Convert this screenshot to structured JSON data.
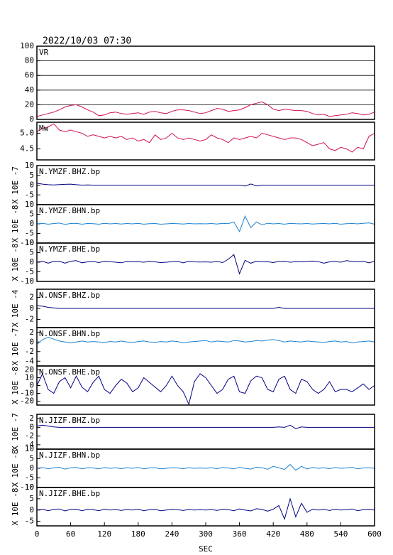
{
  "chart_data": {
    "type": "line",
    "title": "2022/10/03 07:30",
    "xlabel": "SEC",
    "xlim": [
      0,
      600
    ],
    "xticks": [
      0,
      60,
      120,
      180,
      240,
      300,
      360,
      420,
      480,
      540,
      600
    ],
    "x": [
      0,
      10,
      20,
      30,
      40,
      50,
      60,
      70,
      80,
      90,
      100,
      110,
      120,
      130,
      140,
      150,
      160,
      170,
      180,
      190,
      200,
      210,
      220,
      230,
      240,
      250,
      260,
      270,
      280,
      290,
      300,
      310,
      320,
      330,
      340,
      350,
      360,
      370,
      380,
      390,
      400,
      410,
      420,
      430,
      440,
      450,
      460,
      470,
      480,
      490,
      500,
      510,
      520,
      530,
      540,
      550,
      560,
      570,
      580,
      590,
      600
    ],
    "series": [
      {
        "name": "VR",
        "color": "#d0104c",
        "ylim": [
          0,
          100
        ],
        "yticks": [
          0,
          20,
          40,
          60,
          80,
          100
        ],
        "grid": true,
        "values": [
          4,
          6,
          8,
          10,
          13,
          17,
          19,
          20,
          17,
          13,
          10,
          5,
          6,
          9,
          10,
          8,
          7,
          8,
          9,
          7,
          10,
          11,
          9,
          8,
          11,
          13,
          13,
          12,
          10,
          8,
          9,
          12,
          15,
          14,
          11,
          12,
          13,
          16,
          20,
          22,
          24,
          20,
          14,
          12,
          14,
          13,
          12,
          12,
          11,
          8,
          6,
          7,
          4,
          5,
          6,
          7,
          9,
          8,
          6,
          7,
          10
        ]
      },
      {
        "name": "Mw",
        "color": "#d0104c",
        "ylim": [
          4.15,
          5.35
        ],
        "yticks": [
          4.5,
          {
            "value": 5,
            "label": "5.0"
          }
        ],
        "values": [
          5.05,
          5.15,
          5.2,
          5.3,
          5.1,
          5.05,
          5.1,
          5.05,
          5.0,
          4.9,
          4.95,
          4.9,
          4.85,
          4.9,
          4.85,
          4.9,
          4.8,
          4.85,
          4.75,
          4.8,
          4.7,
          4.95,
          4.8,
          4.85,
          5.0,
          4.85,
          4.8,
          4.85,
          4.8,
          4.75,
          4.8,
          4.95,
          4.85,
          4.8,
          4.7,
          4.85,
          4.8,
          4.85,
          4.9,
          4.85,
          5.0,
          4.95,
          4.9,
          4.85,
          4.8,
          4.85,
          4.85,
          4.8,
          4.7,
          4.6,
          4.65,
          4.7,
          4.5,
          4.45,
          4.55,
          4.5,
          4.4,
          4.55,
          4.5,
          4.9,
          5.0
        ]
      },
      {
        "name": "N.YMZF.BHZ.bp",
        "color": "#000080",
        "ylabel": "X 10E -7",
        "ylim": [
          -10,
          10
        ],
        "yticks": [
          -5,
          0,
          5,
          10
        ],
        "values": [
          1,
          0.5,
          0.2,
          0.1,
          0.3,
          0.4,
          0.5,
          0.2,
          0,
          0.1,
          0,
          0,
          0,
          0,
          0,
          0,
          0,
          0,
          0,
          0,
          0,
          0,
          0,
          0,
          0,
          0,
          0,
          0,
          0,
          0,
          0,
          0,
          0,
          0,
          0,
          0,
          0,
          -0.5,
          0.6,
          -0.4,
          0,
          0,
          0,
          0,
          0,
          0,
          0,
          0,
          0,
          0,
          0,
          0,
          0,
          0,
          0,
          0,
          0,
          0,
          0,
          0,
          0
        ]
      },
      {
        "name": "N.YMZF.BHN.bp",
        "color": "#1a80d0",
        "ylabel": "X 10E -8",
        "ylim": [
          -10,
          10
        ],
        "yticks": [
          -10,
          -5,
          0,
          5,
          10
        ],
        "values": [
          0,
          0.3,
          -0.2,
          0.2,
          0.4,
          -0.3,
          0.2,
          0.3,
          -0.2,
          0.2,
          0.1,
          -0.2,
          0.3,
          0,
          0.2,
          -0.1,
          0.2,
          0,
          0.3,
          -0.2,
          0.1,
          0.2,
          -0.2,
          0,
          0.2,
          0.1,
          -0.1,
          0.2,
          0,
          0.1,
          0,
          0.2,
          -0.1,
          0.3,
          0.1,
          1,
          -4,
          4,
          -2,
          1,
          -0.5,
          0.3,
          0,
          0.2,
          -0.2,
          0.3,
          0.1,
          0,
          0.2,
          -0.1,
          0.1,
          0.2,
          0,
          0.3,
          -0.2,
          0.1,
          0.2,
          0,
          0.3,
          0.5,
          -0.2
        ]
      },
      {
        "name": "N.YMZF.BHE.bp",
        "color": "#000080",
        "ylabel": "X 10E -8",
        "ylim": [
          -10,
          10
        ],
        "yticks": [
          -10,
          -5,
          0,
          5,
          10
        ],
        "values": [
          0,
          0.5,
          -0.5,
          0.5,
          0.5,
          -0.5,
          0.5,
          0.8,
          -0.3,
          0.2,
          0.4,
          -0.2,
          0.5,
          0.3,
          0,
          -0.3,
          0.4,
          0.2,
          0.3,
          0,
          0.5,
          0.2,
          -0.2,
          0,
          0.3,
          0.4,
          -0.3,
          0.5,
          0.2,
          0.1,
          0.2,
          0,
          0.4,
          -0.2,
          1.5,
          4,
          -6,
          1,
          -0.5,
          0.5,
          0.2,
          0.3,
          -0.2,
          0.4,
          0.5,
          0,
          0.3,
          0.2,
          0.5,
          0.6,
          0.3,
          -0.5,
          0.2,
          0.4,
          0,
          0.8,
          0.4,
          0.2,
          0.5,
          -0.3,
          0.5
        ]
      },
      {
        "name": "N.ONSF.BHZ.bp",
        "color": "#000080",
        "ylabel": "X 10E -4",
        "ylim": [
          -3.5,
          3.5
        ],
        "yticks": [
          -2,
          0,
          2
        ],
        "values": [
          0.5,
          0.4,
          0.2,
          0.1,
          0,
          0,
          0,
          0,
          0,
          0,
          0,
          0,
          0,
          0,
          0,
          0,
          0,
          0,
          0,
          0,
          0,
          0,
          0,
          0,
          0,
          0,
          0,
          0,
          0,
          0,
          0,
          0,
          0,
          0,
          0,
          0,
          0,
          0,
          0,
          0,
          0,
          0,
          0,
          0.2,
          0,
          0,
          0,
          0,
          0,
          0,
          0,
          0,
          0,
          0,
          0,
          0,
          0,
          0,
          0,
          0,
          0
        ]
      },
      {
        "name": "N.ONSF.BHN.bp",
        "color": "#1a80d0",
        "ylabel": "X 10E -7",
        "ylim": [
          -5,
          3
        ],
        "yticks": [
          -4,
          -2,
          0,
          2
        ],
        "values": [
          -0.5,
          0.5,
          1,
          0.6,
          0.2,
          0,
          -0.2,
          0,
          0.2,
          0,
          0.1,
          0,
          -0.1,
          0.1,
          0,
          0.2,
          0,
          -0.1,
          0.1,
          0.2,
          0,
          -0.1,
          0.1,
          0,
          0.2,
          0.1,
          -0.2,
          0,
          0.1,
          0.2,
          0.3,
          0,
          0.2,
          0.1,
          0,
          0.3,
          0.2,
          0,
          0.1,
          0.3,
          0.2,
          0.4,
          0.5,
          0.3,
          0,
          0.2,
          0.1,
          0,
          0.2,
          0.1,
          0,
          -0.1,
          0.1,
          0.2,
          0,
          0.1,
          -0.2,
          0,
          0.1,
          0.2,
          0
        ]
      },
      {
        "name": "N.ONSF.BHE.bp",
        "color": "#000080",
        "ylabel": "X 10E -8",
        "ylim": [
          -25,
          25
        ],
        "yticks": [
          -20,
          -10,
          0,
          10,
          20
        ],
        "values": [
          0,
          15,
          -5,
          -10,
          5,
          10,
          -3,
          12,
          -2,
          -8,
          4,
          12,
          -5,
          -10,
          0,
          8,
          3,
          -8,
          -3,
          10,
          4,
          -2,
          -8,
          0,
          12,
          0,
          -8,
          -24,
          5,
          15,
          10,
          0,
          -10,
          -5,
          8,
          12,
          -8,
          -10,
          6,
          12,
          10,
          -5,
          -8,
          8,
          12,
          -5,
          -10,
          8,
          5,
          -5,
          -10,
          -5,
          5,
          -8,
          -5,
          -5,
          -8,
          -3,
          2,
          -5,
          0
        ]
      },
      {
        "name": "N.JIZF.BHZ.bp",
        "color": "#000080",
        "ylabel": "X 10E -7",
        "ylim": [
          -5,
          3
        ],
        "yticks": [
          -4,
          -2,
          0,
          2
        ],
        "values": [
          0.3,
          0.5,
          0.3,
          0.1,
          0,
          0,
          0,
          0,
          0,
          0,
          0,
          0,
          0,
          0,
          0,
          0,
          0,
          0,
          0,
          0,
          0,
          0,
          0,
          0,
          0,
          0,
          0,
          0,
          0,
          0,
          0,
          0,
          0,
          0,
          0,
          0,
          0,
          0,
          0,
          0,
          0,
          0,
          0,
          0.1,
          0,
          0.5,
          -0.3,
          0.1,
          0,
          0,
          0,
          0,
          0,
          0,
          0,
          0,
          0,
          0,
          0,
          0,
          0
        ]
      },
      {
        "name": "N.JIZF.BHN.bp",
        "color": "#1a80d0",
        "ylabel": "X 10E -8",
        "ylim": [
          -10,
          10
        ],
        "yticks": [
          -10,
          -5,
          0,
          5,
          10
        ],
        "values": [
          0,
          0.4,
          -0.3,
          0.3,
          0.5,
          -0.4,
          0.3,
          0.4,
          -0.3,
          0.3,
          0.2,
          -0.3,
          0.4,
          0,
          0.3,
          -0.2,
          0.3,
          0,
          0.4,
          -0.3,
          0.2,
          0.3,
          -0.3,
          0,
          0.3,
          0.2,
          -0.2,
          0.3,
          0,
          0.2,
          0,
          0.3,
          -0.2,
          0.4,
          0.2,
          -0.3,
          0.5,
          0,
          -0.4,
          0.6,
          0.3,
          -0.5,
          1,
          0.3,
          -0.6,
          2,
          -1,
          1,
          -0.3,
          0.4,
          0,
          0.3,
          -0.2,
          0.4,
          0,
          0.2,
          0.5,
          -0.3,
          0.2,
          0.3,
          0
        ]
      },
      {
        "name": "N.JIZF.BHE.bp",
        "color": "#000080",
        "ylabel": "X 10E -8",
        "ylim": [
          -7,
          10
        ],
        "yticks": [
          -5,
          0,
          5,
          10
        ],
        "values": [
          0,
          0.4,
          -0.3,
          0.3,
          0.5,
          -0.4,
          0.3,
          0.4,
          -0.3,
          0.3,
          0.2,
          -0.3,
          0.4,
          0,
          0.3,
          -0.2,
          0.3,
          0,
          0.4,
          -0.3,
          0.2,
          0.3,
          -0.3,
          0,
          0.3,
          0.2,
          -0.2,
          0.3,
          0,
          0.2,
          0,
          0.3,
          -0.2,
          0.4,
          0.2,
          -0.3,
          0.5,
          0,
          -0.4,
          0.6,
          0.3,
          -0.5,
          0.4,
          2,
          -4,
          5,
          -3,
          3,
          -1,
          0.4,
          0,
          0.3,
          -0.2,
          0.4,
          0,
          0.2,
          0.5,
          -0.3,
          0.2,
          0.3,
          0
        ]
      }
    ]
  }
}
